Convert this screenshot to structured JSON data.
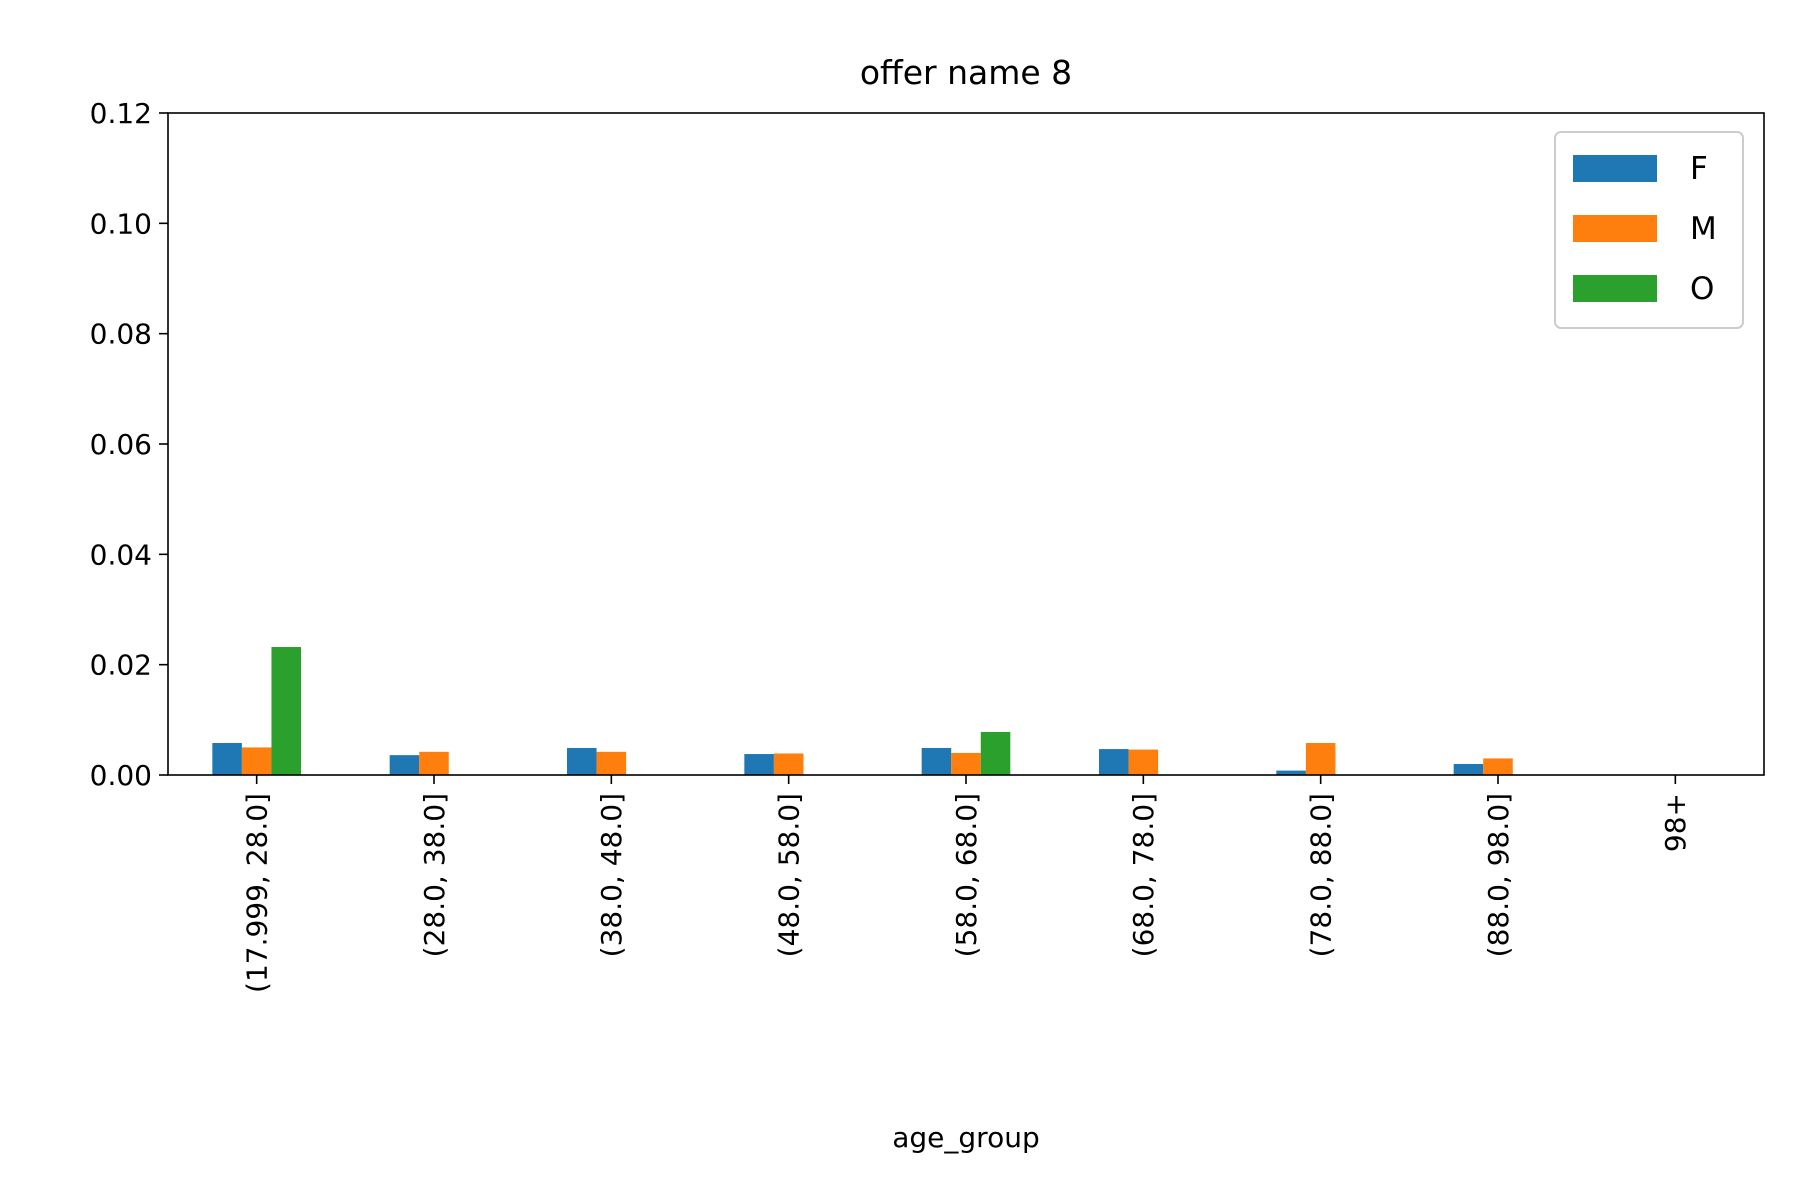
{
  "chart_data": {
    "type": "bar",
    "title": "offer name 8",
    "xlabel": "age_group",
    "ylabel": "",
    "ylim": [
      0,
      0.12
    ],
    "yticks": [
      "0.00",
      "0.02",
      "0.04",
      "0.06",
      "0.08",
      "0.10",
      "0.12"
    ],
    "categories": [
      "(17.999, 28.0]",
      "(28.0, 38.0]",
      "(38.0, 48.0]",
      "(48.0, 58.0]",
      "(58.0, 68.0]",
      "(68.0, 78.0]",
      "(78.0, 88.0]",
      "(88.0, 98.0]",
      "98+"
    ],
    "series": [
      {
        "name": "F",
        "color": "#1f77b4",
        "values": [
          0.0058,
          0.0036,
          0.0049,
          0.0038,
          0.0049,
          0.0047,
          0.0008,
          0.002,
          0
        ]
      },
      {
        "name": "M",
        "color": "#ff7f0e",
        "values": [
          0.005,
          0.0042,
          0.0042,
          0.0039,
          0.004,
          0.0046,
          0.0058,
          0.003,
          0
        ]
      },
      {
        "name": "O",
        "color": "#2ca02c",
        "values": [
          0.0232,
          0,
          0,
          0,
          0.0078,
          0,
          0,
          0,
          0
        ]
      }
    ],
    "legend": {
      "position": "top-right",
      "entries": [
        "F",
        "M",
        "O"
      ]
    },
    "grid": false
  }
}
